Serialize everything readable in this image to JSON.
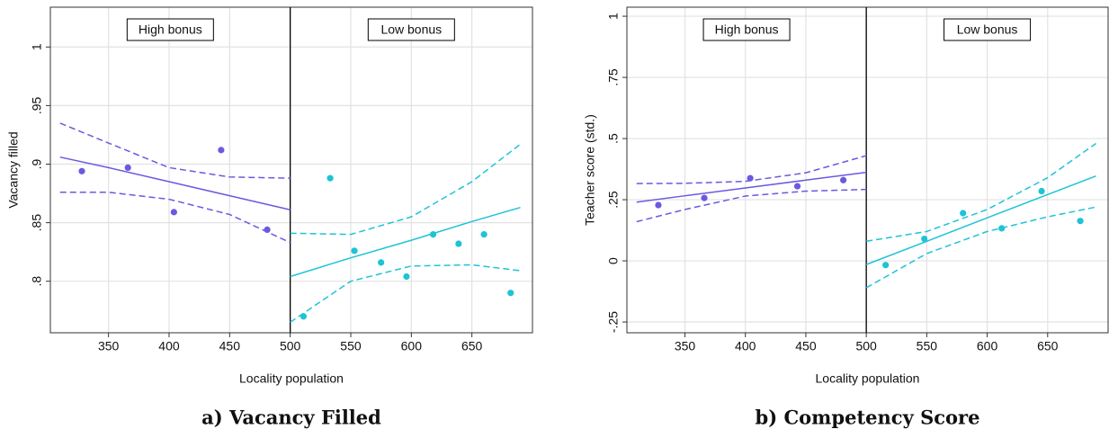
{
  "chart_data": [
    {
      "type": "scatter",
      "title": "a) Vacancy Filled",
      "xlabel": "Locality population",
      "ylabel": "Vacancy filled",
      "xlim": [
        302,
        700
      ],
      "ylim": [
        0.756,
        1.034
      ],
      "xticks": [
        350,
        400,
        450,
        500,
        550,
        600,
        650
      ],
      "yticks": [
        {
          "value": 0.8,
          "label": ".8"
        },
        {
          "value": 0.85,
          "label": ".85"
        },
        {
          "value": 0.9,
          "label": ".9"
        },
        {
          "value": 0.95,
          "label": ".95"
        },
        1
      ],
      "grid": true,
      "cutoff": 500,
      "series": [
        {
          "name": "High bonus",
          "color": "#6a5ae0",
          "x": [
            328,
            366,
            404,
            443,
            481
          ],
          "values": [
            0.894,
            0.897,
            0.859,
            0.912,
            0.844
          ],
          "line_x": [
            310,
            350,
            400,
            450,
            500
          ],
          "fit": [
            0.906,
            0.897,
            0.885,
            0.873,
            0.861
          ],
          "ci_upper": [
            0.935,
            0.918,
            0.897,
            0.889,
            0.888
          ],
          "ci_lower": [
            0.876,
            0.876,
            0.87,
            0.857,
            0.833
          ]
        },
        {
          "name": "Low bonus",
          "color": "#1ec3d6",
          "x": [
            511,
            533,
            553,
            575,
            596,
            618,
            639,
            660,
            682
          ],
          "values": [
            0.77,
            0.888,
            0.826,
            0.816,
            0.804,
            0.84,
            0.832,
            0.84,
            0.79
          ],
          "line_x": [
            500,
            550,
            600,
            650,
            690
          ],
          "fit": [
            0.804,
            0.82,
            0.835,
            0.851,
            0.863
          ],
          "ci_upper": [
            0.841,
            0.84,
            0.855,
            0.885,
            0.917
          ],
          "ci_lower": [
            0.765,
            0.8,
            0.813,
            0.814,
            0.809
          ]
        }
      ]
    },
    {
      "type": "scatter",
      "title": "b) Competency Score",
      "xlabel": "Locality population",
      "ylabel": "Teacher score (std.)",
      "xlim": [
        302,
        700
      ],
      "ylim": [
        -0.294,
        1.037
      ],
      "xticks": [
        350,
        400,
        450,
        500,
        550,
        600,
        650
      ],
      "yticks": [
        {
          "value": -0.25,
          "label": "-.25"
        },
        0,
        {
          "value": 0.25,
          "label": ".25"
        },
        {
          "value": 0.5,
          "label": ".5"
        },
        {
          "value": 0.75,
          "label": ".75"
        },
        1
      ],
      "grid": true,
      "cutoff": 500,
      "series": [
        {
          "name": "High bonus",
          "color": "#6a5ae0",
          "x": [
            328,
            366,
            404,
            443,
            481
          ],
          "values": [
            0.228,
            0.257,
            0.338,
            0.305,
            0.33
          ],
          "line_x": [
            310,
            350,
            400,
            450,
            500
          ],
          "fit": [
            0.24,
            0.266,
            0.298,
            0.33,
            0.362
          ],
          "ci_upper": [
            0.316,
            0.317,
            0.325,
            0.36,
            0.43
          ],
          "ci_lower": [
            0.16,
            0.21,
            0.265,
            0.285,
            0.292
          ]
        },
        {
          "name": "Low bonus",
          "color": "#1ec3d6",
          "x": [
            516,
            548,
            580,
            612,
            645,
            677
          ],
          "values": [
            -0.017,
            0.09,
            0.195,
            0.133,
            0.285,
            0.163
          ],
          "line_x": [
            500,
            550,
            600,
            650,
            690
          ],
          "fit": [
            -0.015,
            0.08,
            0.176,
            0.271,
            0.347
          ],
          "ci_upper": [
            0.08,
            0.12,
            0.21,
            0.34,
            0.48
          ],
          "ci_lower": [
            -0.11,
            0.03,
            0.12,
            0.18,
            0.22
          ]
        }
      ]
    }
  ]
}
